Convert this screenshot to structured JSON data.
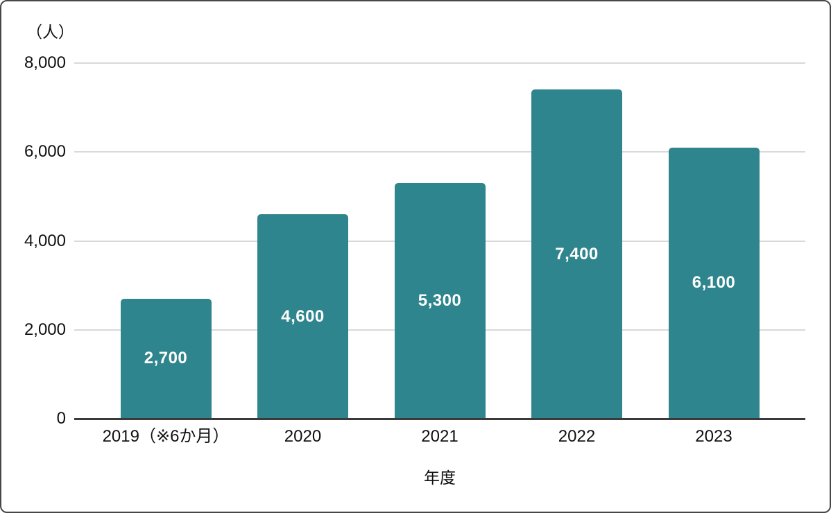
{
  "chart_data": {
    "type": "bar",
    "title": "",
    "unit_label": "（人）",
    "xlabel": "年度",
    "ylabel": "",
    "categories": [
      "2019（※6か月）",
      "2020",
      "2021",
      "2022",
      "2023"
    ],
    "values": [
      2700,
      4600,
      5300,
      7400,
      6100
    ],
    "value_labels": [
      "2,700",
      "4,600",
      "5,300",
      "7,400",
      "6,100"
    ],
    "y_ticks": [
      0,
      2000,
      4000,
      6000,
      8000
    ],
    "y_tick_labels": [
      "0",
      "2,000",
      "4,000",
      "6,000",
      "8,000"
    ],
    "ylim": [
      0,
      8000
    ],
    "grid": true,
    "legend": false,
    "colors": {
      "bar": "#2F858D",
      "value_label": "#FFFFFF",
      "gridline": "#D9D9D9",
      "axis_line": "#3A3A3A",
      "text": "#111111",
      "card_border": "#464646",
      "background": "#FFFFFF"
    }
  }
}
